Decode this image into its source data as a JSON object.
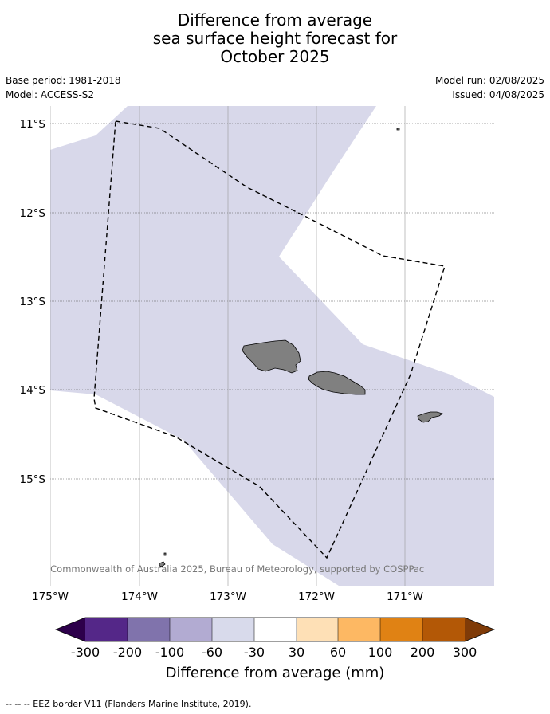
{
  "title_lines": [
    "Difference from average",
    "sea surface height forecast for",
    "October 2025"
  ],
  "meta": {
    "base_period": "Base period: 1981-2018",
    "model": "Model: ACCESS-S2",
    "model_run": "Model run: 02/08/2025",
    "issued": "Issued: 04/08/2025"
  },
  "map": {
    "lat_labels": [
      "11°S",
      "12°S",
      "13°S",
      "14°S",
      "15°S"
    ],
    "lon_labels": [
      "175°W",
      "174°W",
      "173°W",
      "172°W",
      "171°W"
    ],
    "copyright": "© Commonwealth of Australia 2025, Bureau of Meteorology, supported by COSPPac",
    "colors": {
      "ocean_anomaly_fill": "#d8d8ea",
      "land": "#808080",
      "eez_border": "#000000"
    }
  },
  "colorbar": {
    "title": "Difference from average (mm)",
    "tick_labels": [
      "-300",
      "-200",
      "-100",
      "-60",
      "-30",
      "30",
      "60",
      "100",
      "200",
      "300"
    ],
    "colors": [
      "#2d004b",
      "#542788",
      "#8073ac",
      "#b2abd2",
      "#d8daeb",
      "#ffffff",
      "#fee0b6",
      "#fdb863",
      "#e08214",
      "#b35806",
      "#7f3b08"
    ]
  },
  "footnote": "--  --  -- EEZ border V11 (Flanders Marine Institute, 2019)."
}
